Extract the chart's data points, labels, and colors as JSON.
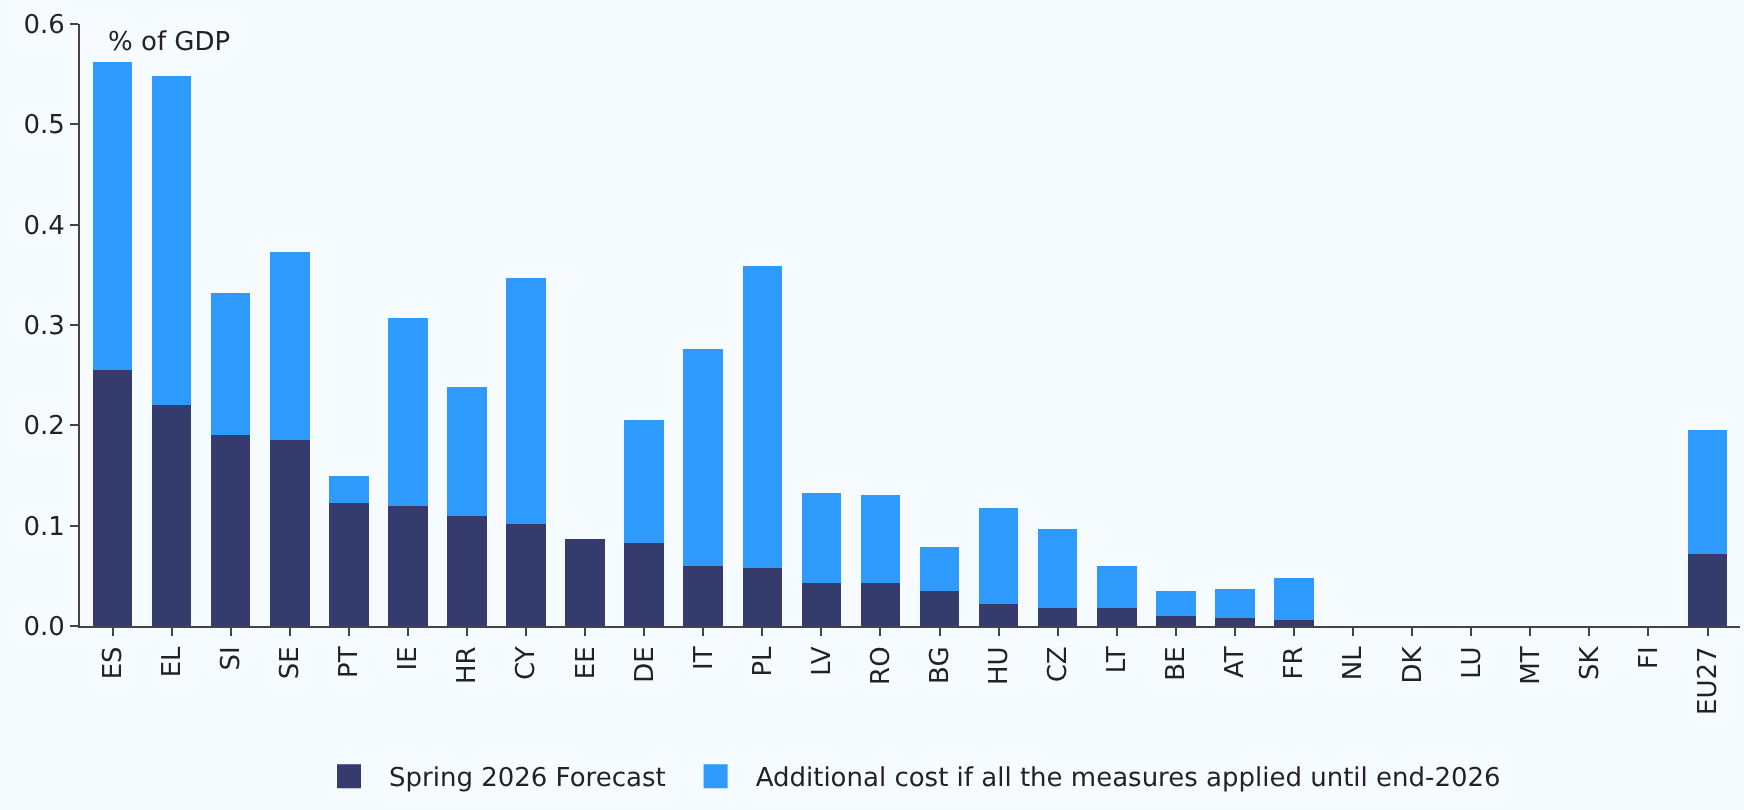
{
  "chart_data": {
    "type": "bar",
    "stacked": true,
    "ylabel": "% of GDP",
    "categories": [
      "ES",
      "EL",
      "SI",
      "SE",
      "PT",
      "IE",
      "HR",
      "CY",
      "EE",
      "DE",
      "IT",
      "PL",
      "LV",
      "RO",
      "BG",
      "HU",
      "CZ",
      "LT",
      "BE",
      "AT",
      "FR",
      "NL",
      "DK",
      "LU",
      "MT",
      "SK",
      "FI",
      "EU27"
    ],
    "series": [
      {
        "name": "Spring 2026 Forecast",
        "color": "#363b6e",
        "values": [
          0.255,
          0.22,
          0.19,
          0.185,
          0.123,
          0.12,
          0.11,
          0.102,
          0.087,
          0.083,
          0.06,
          0.058,
          0.043,
          0.043,
          0.035,
          0.022,
          0.018,
          0.018,
          0.01,
          0.008,
          0.006,
          0,
          0,
          0,
          0,
          0,
          0,
          0.072
        ]
      },
      {
        "name": "Additional cost if all the measures applied until end-2026",
        "color": "#2e9bfc",
        "values": [
          0.307,
          0.328,
          0.142,
          0.188,
          0.027,
          0.187,
          0.128,
          0.245,
          0,
          0.122,
          0.216,
          0.301,
          0.09,
          0.088,
          0.044,
          0.096,
          0.079,
          0.042,
          0.025,
          0.029,
          0.042,
          0,
          0,
          0,
          0,
          0,
          0,
          0.123
        ]
      }
    ],
    "ylim": [
      0,
      0.6
    ],
    "yticks": [
      {
        "value": 0,
        "label": "0.0"
      },
      0.1,
      0.2,
      0.3,
      0.4,
      0.5,
      0.6
    ],
    "grid": false,
    "legend": "bottom"
  }
}
